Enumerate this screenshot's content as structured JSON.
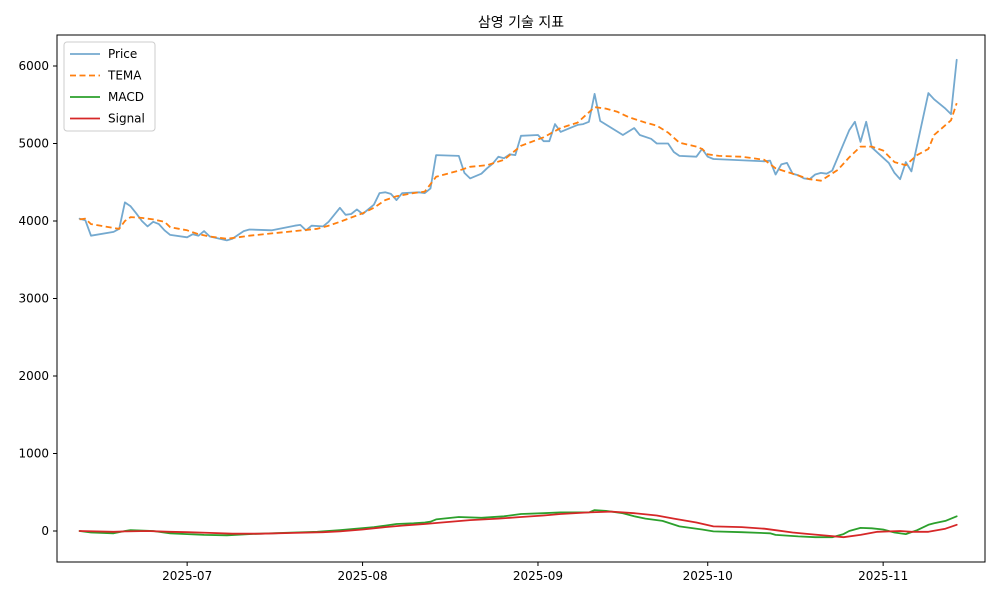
{
  "chart_data": {
    "type": "line",
    "title": "삼영 기술 지표",
    "xlabel": "",
    "ylabel": "",
    "ylim": [
      -400,
      6400
    ],
    "xlim": [
      "2025-06-08",
      "2025-11-19"
    ],
    "grid": false,
    "legend_position": "upper-left",
    "x_ticks": [
      "2025-07-01",
      "2025-08-01",
      "2025-09-01",
      "2025-10-01",
      "2025-11-01"
    ],
    "x_tick_labels": [
      "2025-07",
      "2025-08",
      "2025-09",
      "2025-10",
      "2025-11"
    ],
    "y_ticks": [
      0,
      1000,
      2000,
      3000,
      4000,
      5000,
      6000
    ],
    "y_tick_labels": [
      "0",
      "1000",
      "2000",
      "3000",
      "4000",
      "5000",
      "6000"
    ],
    "series": [
      {
        "name": "Price",
        "color": "#74a9cf",
        "style": "solid",
        "points": [
          [
            "2025-06-12",
            4030
          ],
          [
            "2025-06-13",
            4010
          ],
          [
            "2025-06-14",
            3810
          ],
          [
            "2025-06-18",
            3860
          ],
          [
            "2025-06-19",
            3900
          ],
          [
            "2025-06-20",
            4240
          ],
          [
            "2025-06-21",
            4190
          ],
          [
            "2025-06-22",
            4100
          ],
          [
            "2025-06-23",
            4000
          ],
          [
            "2025-06-24",
            3930
          ],
          [
            "2025-06-25",
            3990
          ],
          [
            "2025-06-26",
            3960
          ],
          [
            "2025-06-27",
            3880
          ],
          [
            "2025-06-28",
            3820
          ],
          [
            "2025-07-01",
            3790
          ],
          [
            "2025-07-02",
            3830
          ],
          [
            "2025-07-03",
            3810
          ],
          [
            "2025-07-04",
            3870
          ],
          [
            "2025-07-05",
            3800
          ],
          [
            "2025-07-08",
            3750
          ],
          [
            "2025-07-09",
            3770
          ],
          [
            "2025-07-10",
            3820
          ],
          [
            "2025-07-11",
            3870
          ],
          [
            "2025-07-12",
            3890
          ],
          [
            "2025-07-16",
            3880
          ],
          [
            "2025-07-20",
            3940
          ],
          [
            "2025-07-21",
            3950
          ],
          [
            "2025-07-22",
            3880
          ],
          [
            "2025-07-23",
            3940
          ],
          [
            "2025-07-25",
            3930
          ],
          [
            "2025-07-26",
            3990
          ],
          [
            "2025-07-28",
            4170
          ],
          [
            "2025-07-29",
            4080
          ],
          [
            "2025-07-30",
            4090
          ],
          [
            "2025-07-31",
            4150
          ],
          [
            "2025-08-01",
            4090
          ],
          [
            "2025-08-03",
            4210
          ],
          [
            "2025-08-04",
            4360
          ],
          [
            "2025-08-05",
            4370
          ],
          [
            "2025-08-06",
            4350
          ],
          [
            "2025-08-07",
            4270
          ],
          [
            "2025-08-08",
            4360
          ],
          [
            "2025-08-11",
            4370
          ],
          [
            "2025-08-12",
            4360
          ],
          [
            "2025-08-13",
            4420
          ],
          [
            "2025-08-14",
            4850
          ],
          [
            "2025-08-18",
            4840
          ],
          [
            "2025-08-19",
            4620
          ],
          [
            "2025-08-20",
            4550
          ],
          [
            "2025-08-22",
            4610
          ],
          [
            "2025-08-23",
            4680
          ],
          [
            "2025-08-24",
            4740
          ],
          [
            "2025-08-25",
            4830
          ],
          [
            "2025-08-26",
            4810
          ],
          [
            "2025-08-27",
            4860
          ],
          [
            "2025-08-28",
            4850
          ],
          [
            "2025-08-29",
            5100
          ],
          [
            "2025-09-01",
            5110
          ],
          [
            "2025-09-02",
            5030
          ],
          [
            "2025-09-03",
            5030
          ],
          [
            "2025-09-04",
            5250
          ],
          [
            "2025-09-05",
            5150
          ],
          [
            "2025-09-08",
            5240
          ],
          [
            "2025-09-09",
            5250
          ],
          [
            "2025-09-10",
            5280
          ],
          [
            "2025-09-11",
            5640
          ],
          [
            "2025-09-12",
            5290
          ],
          [
            "2025-09-16",
            5110
          ],
          [
            "2025-09-18",
            5200
          ],
          [
            "2025-09-19",
            5110
          ],
          [
            "2025-09-21",
            5060
          ],
          [
            "2025-09-22",
            5000
          ],
          [
            "2025-09-24",
            5000
          ],
          [
            "2025-09-25",
            4890
          ],
          [
            "2025-09-26",
            4840
          ],
          [
            "2025-09-29",
            4830
          ],
          [
            "2025-09-30",
            4930
          ],
          [
            "2025-10-01",
            4830
          ],
          [
            "2025-10-02",
            4800
          ],
          [
            "2025-10-11",
            4770
          ],
          [
            "2025-10-12",
            4780
          ],
          [
            "2025-10-13",
            4600
          ],
          [
            "2025-10-14",
            4730
          ],
          [
            "2025-10-15",
            4750
          ],
          [
            "2025-10-16",
            4610
          ],
          [
            "2025-10-17",
            4590
          ],
          [
            "2025-10-18",
            4550
          ],
          [
            "2025-10-19",
            4540
          ],
          [
            "2025-10-20",
            4600
          ],
          [
            "2025-10-21",
            4620
          ],
          [
            "2025-10-22",
            4610
          ],
          [
            "2025-10-23",
            4650
          ],
          [
            "2025-10-26",
            5170
          ],
          [
            "2025-10-27",
            5280
          ],
          [
            "2025-10-28",
            5020
          ],
          [
            "2025-10-29",
            5280
          ],
          [
            "2025-10-30",
            4950
          ],
          [
            "2025-11-02",
            4750
          ],
          [
            "2025-11-03",
            4620
          ],
          [
            "2025-11-04",
            4540
          ],
          [
            "2025-11-05",
            4760
          ],
          [
            "2025-11-06",
            4640
          ],
          [
            "2025-11-09",
            5650
          ],
          [
            "2025-11-10",
            5570
          ],
          [
            "2025-11-12",
            5450
          ],
          [
            "2025-11-13",
            5380
          ],
          [
            "2025-11-14",
            6080
          ]
        ]
      },
      {
        "name": "TEMA",
        "color": "#ff7f0e",
        "style": "dashed",
        "points": [
          [
            "2025-06-12",
            4020
          ],
          [
            "2025-06-13",
            4030
          ],
          [
            "2025-06-14",
            3960
          ],
          [
            "2025-06-18",
            3910
          ],
          [
            "2025-06-19",
            3900
          ],
          [
            "2025-06-20",
            4000
          ],
          [
            "2025-06-21",
            4050
          ],
          [
            "2025-06-23",
            4040
          ],
          [
            "2025-06-25",
            4020
          ],
          [
            "2025-06-27",
            3990
          ],
          [
            "2025-06-28",
            3920
          ],
          [
            "2025-07-01",
            3880
          ],
          [
            "2025-07-03",
            3830
          ],
          [
            "2025-07-05",
            3800
          ],
          [
            "2025-07-08",
            3770
          ],
          [
            "2025-07-10",
            3790
          ],
          [
            "2025-07-12",
            3810
          ],
          [
            "2025-07-16",
            3840
          ],
          [
            "2025-07-20",
            3870
          ],
          [
            "2025-07-24",
            3900
          ],
          [
            "2025-07-26",
            3940
          ],
          [
            "2025-07-28",
            3990
          ],
          [
            "2025-08-01",
            4100
          ],
          [
            "2025-08-03",
            4170
          ],
          [
            "2025-08-05",
            4270
          ],
          [
            "2025-08-07",
            4320
          ],
          [
            "2025-08-10",
            4360
          ],
          [
            "2025-08-12",
            4380
          ],
          [
            "2025-08-14",
            4570
          ],
          [
            "2025-08-18",
            4650
          ],
          [
            "2025-08-20",
            4700
          ],
          [
            "2025-08-23",
            4720
          ],
          [
            "2025-08-26",
            4790
          ],
          [
            "2025-08-29",
            4970
          ],
          [
            "2025-09-02",
            5080
          ],
          [
            "2025-09-05",
            5200
          ],
          [
            "2025-09-08",
            5270
          ],
          [
            "2025-09-11",
            5470
          ],
          [
            "2025-09-13",
            5450
          ],
          [
            "2025-09-15",
            5410
          ],
          [
            "2025-09-17",
            5340
          ],
          [
            "2025-09-20",
            5270
          ],
          [
            "2025-09-22",
            5230
          ],
          [
            "2025-09-24",
            5140
          ],
          [
            "2025-09-26",
            5010
          ],
          [
            "2025-09-29",
            4960
          ],
          [
            "2025-09-30",
            4930
          ],
          [
            "2025-10-01",
            4860
          ],
          [
            "2025-10-03",
            4840
          ],
          [
            "2025-10-07",
            4830
          ],
          [
            "2025-10-11",
            4790
          ],
          [
            "2025-10-13",
            4680
          ],
          [
            "2025-10-16",
            4610
          ],
          [
            "2025-10-19",
            4540
          ],
          [
            "2025-10-21",
            4520
          ],
          [
            "2025-10-24",
            4660
          ],
          [
            "2025-10-26",
            4820
          ],
          [
            "2025-10-28",
            4960
          ],
          [
            "2025-10-30",
            4960
          ],
          [
            "2025-11-01",
            4910
          ],
          [
            "2025-11-03",
            4760
          ],
          [
            "2025-11-05",
            4720
          ],
          [
            "2025-11-07",
            4850
          ],
          [
            "2025-11-09",
            4930
          ],
          [
            "2025-11-10",
            5110
          ],
          [
            "2025-11-13",
            5300
          ],
          [
            "2025-11-14",
            5520
          ]
        ]
      },
      {
        "name": "MACD",
        "color": "#2ca02c",
        "style": "solid",
        "points": [
          [
            "2025-06-12",
            0
          ],
          [
            "2025-06-14",
            -20
          ],
          [
            "2025-06-18",
            -30
          ],
          [
            "2025-06-20",
            0
          ],
          [
            "2025-06-21",
            10
          ],
          [
            "2025-06-25",
            0
          ],
          [
            "2025-06-28",
            -30
          ],
          [
            "2025-07-01",
            -40
          ],
          [
            "2025-07-04",
            -50
          ],
          [
            "2025-07-08",
            -55
          ],
          [
            "2025-07-12",
            -40
          ],
          [
            "2025-07-16",
            -30
          ],
          [
            "2025-07-20",
            -20
          ],
          [
            "2025-07-24",
            -10
          ],
          [
            "2025-07-28",
            10
          ],
          [
            "2025-07-31",
            30
          ],
          [
            "2025-08-03",
            50
          ],
          [
            "2025-08-05",
            70
          ],
          [
            "2025-08-07",
            90
          ],
          [
            "2025-08-10",
            100
          ],
          [
            "2025-08-12",
            110
          ],
          [
            "2025-08-13",
            120
          ],
          [
            "2025-08-14",
            150
          ],
          [
            "2025-08-18",
            180
          ],
          [
            "2025-08-22",
            170
          ],
          [
            "2025-08-26",
            190
          ],
          [
            "2025-08-29",
            220
          ],
          [
            "2025-09-02",
            230
          ],
          [
            "2025-09-05",
            240
          ],
          [
            "2025-09-10",
            240
          ],
          [
            "2025-09-11",
            270
          ],
          [
            "2025-09-13",
            260
          ],
          [
            "2025-09-16",
            230
          ],
          [
            "2025-09-18",
            190
          ],
          [
            "2025-09-20",
            160
          ],
          [
            "2025-09-23",
            130
          ],
          [
            "2025-09-26",
            60
          ],
          [
            "2025-09-30",
            20
          ],
          [
            "2025-10-02",
            -5
          ],
          [
            "2025-10-07",
            -15
          ],
          [
            "2025-10-12",
            -30
          ],
          [
            "2025-10-13",
            -50
          ],
          [
            "2025-10-15",
            -60
          ],
          [
            "2025-10-17",
            -70
          ],
          [
            "2025-10-20",
            -80
          ],
          [
            "2025-10-23",
            -80
          ],
          [
            "2025-10-25",
            -40
          ],
          [
            "2025-10-26",
            0
          ],
          [
            "2025-10-28",
            40
          ],
          [
            "2025-10-30",
            35
          ],
          [
            "2025-11-01",
            20
          ],
          [
            "2025-11-03",
            -20
          ],
          [
            "2025-11-05",
            -40
          ],
          [
            "2025-11-07",
            10
          ],
          [
            "2025-11-09",
            80
          ],
          [
            "2025-11-10",
            100
          ],
          [
            "2025-11-12",
            130
          ],
          [
            "2025-11-14",
            190
          ]
        ]
      },
      {
        "name": "Signal",
        "color": "#d62728",
        "style": "solid",
        "points": [
          [
            "2025-06-12",
            0
          ],
          [
            "2025-06-18",
            -10
          ],
          [
            "2025-06-20",
            -5
          ],
          [
            "2025-06-24",
            0
          ],
          [
            "2025-06-28",
            -10
          ],
          [
            "2025-07-01",
            -15
          ],
          [
            "2025-07-05",
            -25
          ],
          [
            "2025-07-09",
            -35
          ],
          [
            "2025-07-14",
            -35
          ],
          [
            "2025-07-20",
            -25
          ],
          [
            "2025-07-25",
            -15
          ],
          [
            "2025-07-28",
            -5
          ],
          [
            "2025-08-01",
            20
          ],
          [
            "2025-08-05",
            50
          ],
          [
            "2025-08-08",
            70
          ],
          [
            "2025-08-12",
            90
          ],
          [
            "2025-08-15",
            110
          ],
          [
            "2025-08-20",
            140
          ],
          [
            "2025-08-25",
            160
          ],
          [
            "2025-08-29",
            180
          ],
          [
            "2025-09-02",
            200
          ],
          [
            "2025-09-05",
            220
          ],
          [
            "2025-09-10",
            240
          ],
          [
            "2025-09-14",
            250
          ],
          [
            "2025-09-18",
            230
          ],
          [
            "2025-09-22",
            200
          ],
          [
            "2025-09-25",
            160
          ],
          [
            "2025-09-29",
            110
          ],
          [
            "2025-10-02",
            60
          ],
          [
            "2025-10-07",
            50
          ],
          [
            "2025-10-11",
            30
          ],
          [
            "2025-10-13",
            10
          ],
          [
            "2025-10-16",
            -20
          ],
          [
            "2025-10-19",
            -40
          ],
          [
            "2025-10-22",
            -60
          ],
          [
            "2025-10-25",
            -80
          ],
          [
            "2025-10-28",
            -50
          ],
          [
            "2025-10-31",
            -10
          ],
          [
            "2025-11-04",
            0
          ],
          [
            "2025-11-06",
            -10
          ],
          [
            "2025-11-09",
            -10
          ],
          [
            "2025-11-12",
            30
          ],
          [
            "2025-11-14",
            80
          ]
        ]
      }
    ]
  }
}
